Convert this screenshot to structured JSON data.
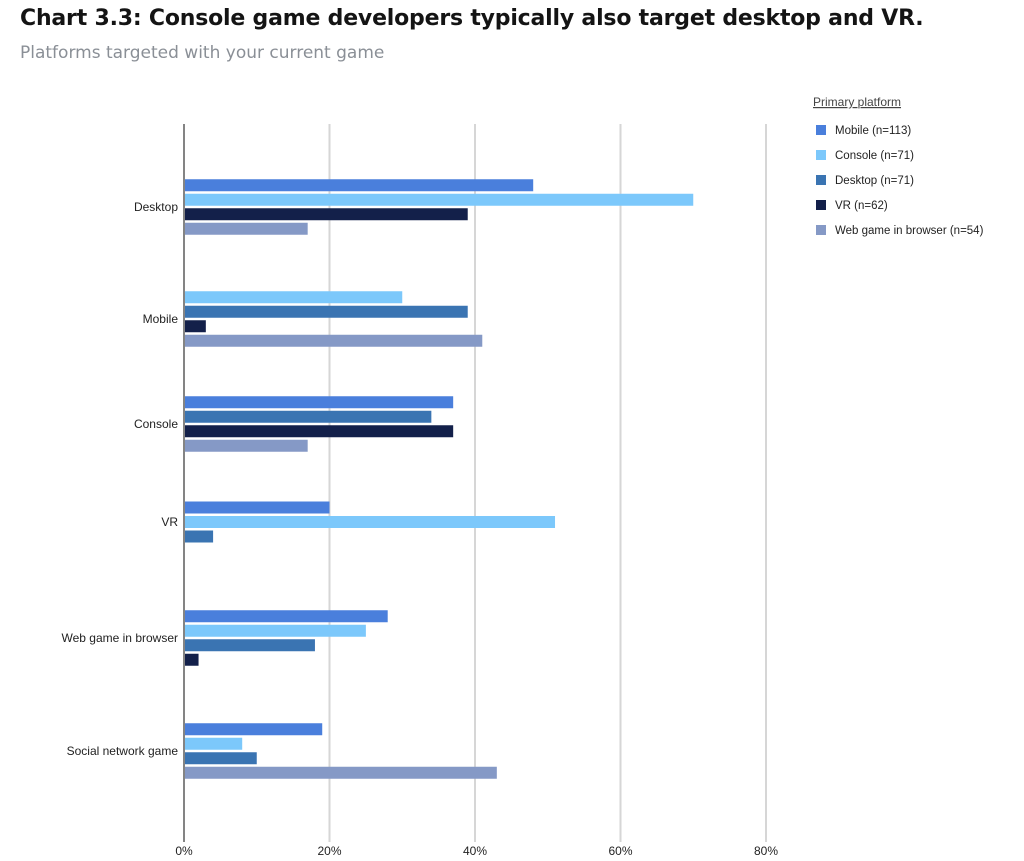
{
  "chart_data": {
    "type": "bar",
    "orientation": "horizontal",
    "title": "Chart 3.3: Console game developers typically also target desktop and VR.",
    "subtitle": "Platforms targeted with your current game",
    "legend_title": "Primary platform",
    "legend_position": "top-right",
    "grid": true,
    "xlim": [
      0,
      80
    ],
    "x_ticks": [
      0,
      20,
      40,
      60,
      80
    ],
    "x_tick_labels": [
      "0%",
      "20%",
      "40%",
      "60%",
      "80%"
    ],
    "categories": [
      "Desktop",
      "Mobile",
      "Console",
      "VR",
      "Web game in browser",
      "Social network game"
    ],
    "series": [
      {
        "name": "Mobile (n=113)",
        "color": "#4a7fdc",
        "values": [
          48,
          0,
          37,
          20,
          28,
          19
        ]
      },
      {
        "name": "Console (n=71)",
        "color": "#7cc8fb",
        "values": [
          70,
          30,
          0,
          51,
          25,
          8
        ]
      },
      {
        "name": "Desktop (n=71)",
        "color": "#3a74b2",
        "values": [
          0,
          39,
          34,
          4,
          18,
          10
        ]
      },
      {
        "name": "VR (n=62)",
        "color": "#13204a",
        "values": [
          39,
          3,
          37,
          0,
          2,
          0
        ]
      },
      {
        "name": "Web game in browser (n=54)",
        "color": "#8599c6",
        "values": [
          17,
          41,
          17,
          0,
          0,
          43
        ]
      }
    ]
  }
}
